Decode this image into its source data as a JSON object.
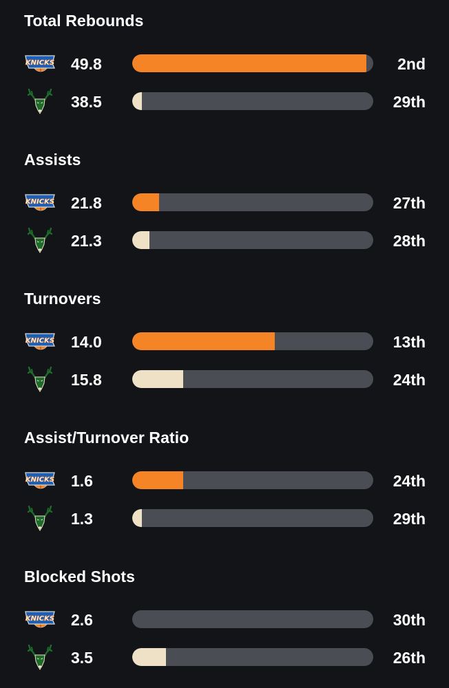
{
  "colors": {
    "background": "#121417",
    "track": "#4a4e54",
    "knicks_fill": "#f58426",
    "bucks_fill": "#eee1c6",
    "knicks_blue": "#1d5fb4",
    "bucks_green": "#1f6b2c"
  },
  "sections": [
    {
      "title": "Total Rebounds",
      "rows": [
        {
          "team": "knicks",
          "icon": "knicks-logo-icon",
          "value": "49.8",
          "rank": "2nd",
          "fill_fraction": 0.97
        },
        {
          "team": "bucks",
          "icon": "bucks-logo-icon",
          "value": "38.5",
          "rank": "29th",
          "fill_fraction": 0.04
        }
      ]
    },
    {
      "title": "Assists",
      "rows": [
        {
          "team": "knicks",
          "icon": "knicks-logo-icon",
          "value": "21.8",
          "rank": "27th",
          "fill_fraction": 0.11
        },
        {
          "team": "bucks",
          "icon": "bucks-logo-icon",
          "value": "21.3",
          "rank": "28th",
          "fill_fraction": 0.07
        }
      ]
    },
    {
      "title": "Turnovers",
      "rows": [
        {
          "team": "knicks",
          "icon": "knicks-logo-icon",
          "value": "14.0",
          "rank": "13th",
          "fill_fraction": 0.59
        },
        {
          "team": "bucks",
          "icon": "bucks-logo-icon",
          "value": "15.8",
          "rank": "24th",
          "fill_fraction": 0.21
        }
      ]
    },
    {
      "title": "Assist/Turnover Ratio",
      "rows": [
        {
          "team": "knicks",
          "icon": "knicks-logo-icon",
          "value": "1.6",
          "rank": "24th",
          "fill_fraction": 0.21
        },
        {
          "team": "bucks",
          "icon": "bucks-logo-icon",
          "value": "1.3",
          "rank": "29th",
          "fill_fraction": 0.04
        }
      ]
    },
    {
      "title": "Blocked Shots",
      "rows": [
        {
          "team": "knicks",
          "icon": "knicks-logo-icon",
          "value": "2.6",
          "rank": "30th",
          "fill_fraction": 0.0
        },
        {
          "team": "bucks",
          "icon": "bucks-logo-icon",
          "value": "3.5",
          "rank": "26th",
          "fill_fraction": 0.14
        }
      ]
    }
  ]
}
